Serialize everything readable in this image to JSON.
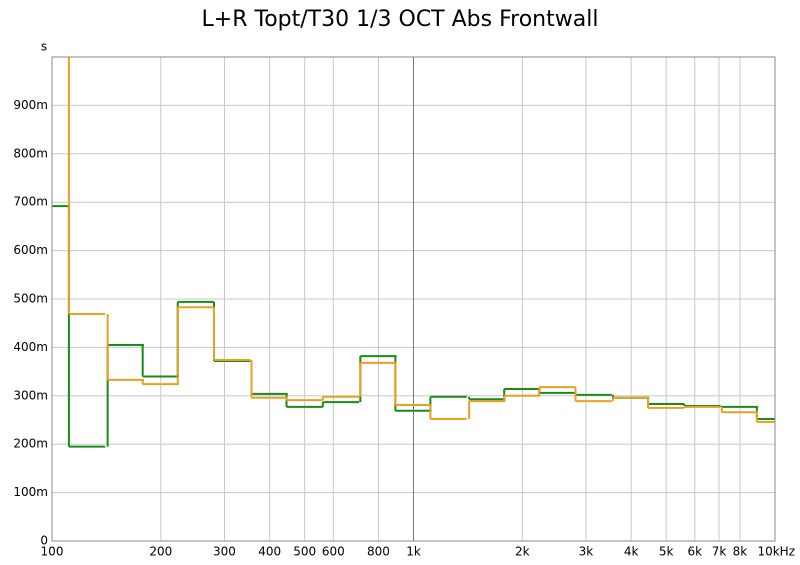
{
  "chart_data": {
    "type": "step",
    "title": "L+R Topt/T30 1/3 OCT Abs Frontwall",
    "y_unit": "s",
    "x": [
      100,
      125,
      160,
      200,
      250,
      315,
      400,
      500,
      630,
      800,
      1000,
      1250,
      1600,
      2000,
      2500,
      3150,
      4000,
      5000,
      6300,
      8000,
      10000
    ],
    "series": [
      {
        "color": "#1a8a1a",
        "values": [
          0.692,
          0.195,
          0.405,
          0.34,
          0.494,
          0.372,
          0.304,
          0.277,
          0.287,
          0.382,
          0.269,
          0.298,
          0.293,
          0.314,
          0.306,
          0.302,
          0.296,
          0.283,
          0.279,
          0.277,
          0.252
        ]
      },
      {
        "color": "#e8a020",
        "values": [
          1.2,
          0.469,
          0.333,
          0.324,
          0.483,
          0.374,
          0.296,
          0.291,
          0.298,
          0.368,
          0.281,
          0.252,
          0.289,
          0.3,
          0.318,
          0.289,
          0.296,
          0.275,
          0.277,
          0.266,
          0.246
        ]
      }
    ],
    "xlog": true,
    "xlim": [
      100,
      10000
    ],
    "xticks": [
      100,
      200,
      300,
      400,
      500,
      600,
      800,
      {
        "value": 1000,
        "label": "1k"
      },
      {
        "value": 2000,
        "label": "2k"
      },
      {
        "value": 3000,
        "label": "3k"
      },
      {
        "value": 4000,
        "label": "4k"
      },
      {
        "value": 5000,
        "label": "5k"
      },
      {
        "value": 6000,
        "label": "6k"
      },
      {
        "value": 7000,
        "label": "7k"
      },
      {
        "value": 8000,
        "label": "8k"
      },
      {
        "value": 10000,
        "label": "10kHz"
      }
    ],
    "ylim": [
      0,
      1
    ],
    "yticks": [
      0,
      {
        "value": 0.1,
        "label": "100m"
      },
      {
        "value": 0.2,
        "label": "200m"
      },
      {
        "value": 0.3,
        "label": "300m"
      },
      {
        "value": 0.4,
        "label": "400m"
      },
      {
        "value": 0.5,
        "label": "500m"
      },
      {
        "value": 0.6,
        "label": "600m"
      },
      {
        "value": 0.7,
        "label": "700m"
      },
      {
        "value": 0.8,
        "label": "800m"
      },
      {
        "value": 0.9,
        "label": "900m"
      }
    ],
    "grid": true
  }
}
